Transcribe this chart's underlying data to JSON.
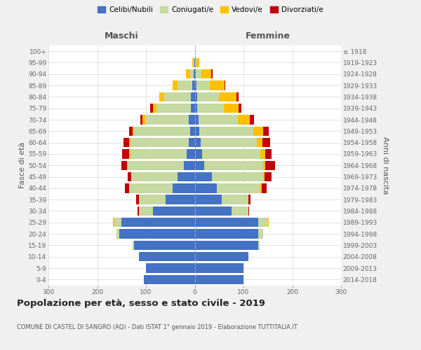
{
  "age_groups": [
    "0-4",
    "5-9",
    "10-14",
    "15-19",
    "20-24",
    "25-29",
    "30-34",
    "35-39",
    "40-44",
    "45-49",
    "50-54",
    "55-59",
    "60-64",
    "65-69",
    "70-74",
    "75-79",
    "80-84",
    "85-89",
    "90-94",
    "95-99",
    "100+"
  ],
  "birth_years": [
    "2014-2018",
    "2009-2013",
    "2004-2008",
    "1999-2003",
    "1994-1998",
    "1989-1993",
    "1984-1988",
    "1979-1983",
    "1974-1978",
    "1969-1973",
    "1964-1968",
    "1959-1963",
    "1954-1958",
    "1949-1953",
    "1944-1948",
    "1939-1943",
    "1934-1938",
    "1929-1933",
    "1924-1928",
    "1919-1923",
    "≤ 1918"
  ],
  "maschi": {
    "celibi": [
      105,
      100,
      115,
      125,
      155,
      150,
      85,
      60,
      45,
      35,
      22,
      17,
      12,
      10,
      12,
      8,
      8,
      5,
      2,
      1,
      0
    ],
    "coniugati": [
      0,
      0,
      0,
      3,
      5,
      15,
      30,
      55,
      90,
      95,
      115,
      115,
      120,
      115,
      90,
      70,
      55,
      30,
      8,
      2,
      0
    ],
    "vedovi": [
      0,
      0,
      0,
      0,
      0,
      2,
      0,
      0,
      0,
      0,
      2,
      2,
      2,
      2,
      5,
      8,
      10,
      10,
      8,
      2,
      0
    ],
    "divorziati": [
      0,
      0,
      0,
      0,
      0,
      0,
      2,
      5,
      8,
      8,
      12,
      15,
      12,
      8,
      5,
      5,
      0,
      0,
      0,
      0,
      0
    ]
  },
  "femmine": {
    "nubili": [
      100,
      100,
      110,
      130,
      130,
      130,
      75,
      55,
      45,
      35,
      20,
      15,
      12,
      10,
      8,
      5,
      5,
      3,
      2,
      1,
      0
    ],
    "coniugate": [
      0,
      0,
      0,
      3,
      10,
      20,
      35,
      55,
      90,
      105,
      120,
      120,
      115,
      110,
      80,
      55,
      45,
      28,
      12,
      3,
      0
    ],
    "vedove": [
      0,
      0,
      0,
      0,
      0,
      2,
      0,
      0,
      3,
      3,
      5,
      10,
      12,
      20,
      25,
      30,
      35,
      30,
      20,
      5,
      0
    ],
    "divorziate": [
      0,
      0,
      0,
      0,
      0,
      0,
      2,
      5,
      10,
      15,
      20,
      12,
      15,
      12,
      8,
      5,
      5,
      2,
      2,
      0,
      0
    ]
  },
  "colors": {
    "celibi": "#4472c4",
    "coniugati": "#c5d9a0",
    "vedovi": "#ffc000",
    "divorziati": "#c0000a"
  },
  "xlim": 300,
  "title": "Popolazione per età, sesso e stato civile - 2019",
  "subtitle": "COMUNE DI CASTEL DI SANGRO (AQ) - Dati ISTAT 1° gennaio 2019 - Elaborazione TUTTITALIA.IT",
  "ylabel_left": "Fasce di età",
  "ylabel_right": "Anni di nascita",
  "xlabel_left": "Maschi",
  "xlabel_right": "Femmine",
  "bg_color": "#f0f0f0",
  "plot_bg": "#ffffff"
}
